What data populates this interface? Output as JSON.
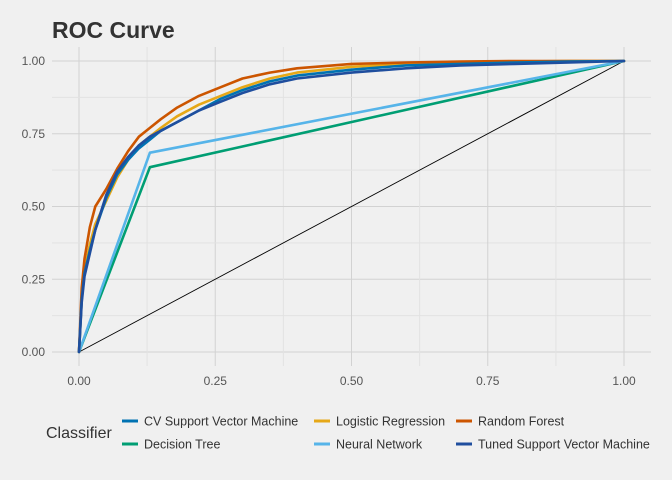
{
  "chart_data": {
    "type": "line",
    "title": "ROC Curve",
    "xlabel": "",
    "ylabel": "",
    "xlim": [
      0,
      1
    ],
    "ylim": [
      0,
      1
    ],
    "x_ticks": [
      "0.00",
      "0.25",
      "0.50",
      "0.75",
      "1.00"
    ],
    "y_ticks": [
      "0.00",
      "0.25",
      "0.50",
      "0.75",
      "1.00"
    ],
    "grid": true,
    "legend_title": "Classifier",
    "legend_position": "bottom",
    "reference_line": {
      "x": [
        0,
        1
      ],
      "y": [
        0,
        1
      ],
      "color": "#000000"
    },
    "series": [
      {
        "name": "CV Support Vector Machine",
        "color": "#0072B2",
        "x": [
          0,
          0.005,
          0.01,
          0.02,
          0.03,
          0.05,
          0.07,
          0.09,
          0.11,
          0.13,
          0.15,
          0.18,
          0.22,
          0.26,
          0.3,
          0.35,
          0.4,
          0.5,
          0.6,
          0.7,
          0.8,
          0.9,
          1.0
        ],
        "y": [
          0,
          0.18,
          0.27,
          0.35,
          0.42,
          0.53,
          0.61,
          0.66,
          0.7,
          0.73,
          0.76,
          0.79,
          0.83,
          0.87,
          0.9,
          0.93,
          0.95,
          0.97,
          0.985,
          0.99,
          0.995,
          0.998,
          1.0
        ]
      },
      {
        "name": "Logistic Regression",
        "color": "#E6A817",
        "x": [
          0,
          0.005,
          0.01,
          0.02,
          0.03,
          0.05,
          0.07,
          0.09,
          0.11,
          0.13,
          0.15,
          0.18,
          0.22,
          0.26,
          0.3,
          0.35,
          0.4,
          0.5,
          0.6,
          0.7,
          0.8,
          0.9,
          1.0
        ],
        "y": [
          0,
          0.18,
          0.28,
          0.37,
          0.44,
          0.52,
          0.6,
          0.66,
          0.71,
          0.74,
          0.77,
          0.81,
          0.85,
          0.88,
          0.91,
          0.94,
          0.96,
          0.98,
          0.99,
          0.995,
          0.998,
          1.0,
          1.0
        ]
      },
      {
        "name": "Random Forest",
        "color": "#CC5500",
        "x": [
          0,
          0.005,
          0.01,
          0.02,
          0.03,
          0.05,
          0.07,
          0.09,
          0.11,
          0.13,
          0.15,
          0.18,
          0.22,
          0.26,
          0.3,
          0.35,
          0.4,
          0.5,
          0.6,
          0.7,
          0.8,
          0.9,
          1.0
        ],
        "y": [
          0,
          0.22,
          0.32,
          0.43,
          0.5,
          0.56,
          0.63,
          0.69,
          0.74,
          0.77,
          0.8,
          0.84,
          0.88,
          0.91,
          0.94,
          0.96,
          0.975,
          0.99,
          0.995,
          0.998,
          1.0,
          1.0,
          1.0
        ]
      },
      {
        "name": "Decision Tree",
        "color": "#009E73",
        "x": [
          0,
          0.13,
          1.0
        ],
        "y": [
          0,
          0.635,
          1.0
        ]
      },
      {
        "name": "Neural Network",
        "color": "#56B4E9",
        "x": [
          0,
          0.13,
          1.0
        ],
        "y": [
          0,
          0.685,
          1.0
        ]
      },
      {
        "name": "Tuned Support Vector Machine",
        "color": "#1F4E9E",
        "x": [
          0,
          0.005,
          0.01,
          0.02,
          0.03,
          0.05,
          0.07,
          0.09,
          0.11,
          0.13,
          0.15,
          0.18,
          0.22,
          0.26,
          0.3,
          0.35,
          0.4,
          0.5,
          0.6,
          0.7,
          0.8,
          0.9,
          1.0
        ],
        "y": [
          0,
          0.17,
          0.26,
          0.34,
          0.42,
          0.54,
          0.62,
          0.67,
          0.71,
          0.74,
          0.76,
          0.79,
          0.83,
          0.86,
          0.89,
          0.92,
          0.94,
          0.96,
          0.975,
          0.985,
          0.99,
          0.995,
          1.0
        ]
      }
    ]
  }
}
